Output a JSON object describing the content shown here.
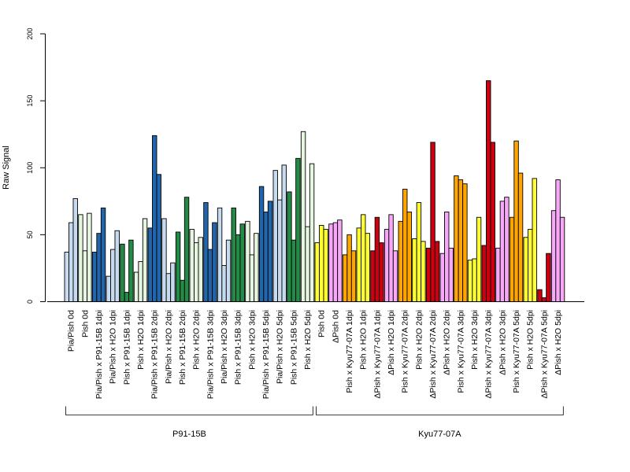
{
  "chart_data": {
    "type": "bar",
    "title": "",
    "ylabel": "Raw Signal",
    "xlabel": "",
    "ylim": [
      0,
      200
    ],
    "yticks": [
      0,
      50,
      100,
      150,
      200
    ],
    "grid": false,
    "legend": "none",
    "colors": {
      "Pia/Pish": "#c6dbef",
      "Pish": "#e5f5e0",
      "Pia/Pish x P91-15B": "#2166ac",
      "Pish x P91-15B": "#238b45",
      "Pia/Pish x H2O": "#c6dbef",
      "Pish x H2O": "#e5f5e0",
      "Kyu Pish": "#ffff33",
      "ΔPish": "#f8a8f8",
      "Pish x Kyu77-07A": "#ffa500",
      "ΔPish x Kyu77-07A": "#cc0011",
      "Kyu Pish x H2O": "#ffff33",
      "ΔPish x H2O": "#f8a8f8"
    },
    "categories": [
      "Pia/Pish 0d",
      "Pish 0d",
      "Pia/Pish x P91-15B 1dpi",
      "Pia/Pish x H2O 1dpi",
      "Pish x P91-15B 1dpi",
      "Pish x H2O 1dpi",
      "Pia/Pish x P91-15B 2dpi",
      "Pia/Pish x H2O 2dpi",
      "Pish x P91-15B 2dpi",
      "Pish x H2O 2dpi",
      "Pia/Pish x P91-15B 3dpi",
      "Pia/Pish x H2O 3dpi",
      "Pish x P91-15B 3dpi",
      "Pish x H2O 3dpi",
      "Pia/Pish x P91-15B 5dpi",
      "Pia/Pish x H2O 5dpi",
      "Pish x P91-15B 5dpi",
      "Pish x H2O 5dpi",
      "Pish 0d",
      "ΔPish 0d",
      "Pish x Kyu77-07A 1dpi",
      "Pish x H2O 1dpi",
      "ΔPish x Kyu77-07A 1dpi",
      "ΔPish x H2O 1dpi",
      "Pish x Kyu77-07A 2dpi",
      "Pish x H2O 2dpi",
      "ΔPish x Kyu77-07A 2dpi",
      "ΔPish x H2O 2dpi",
      "Pish x Kyu77-07A 3dpi",
      "Pish x H2O 3dpi",
      "ΔPish x Kyu77-07A 3dpi",
      "ΔPish x H2O 3dpi",
      "Pish x Kyu77-07A 5dpi",
      "Pish x H2O 5dpi",
      "ΔPish x Kyu77-07A 5dpi",
      "ΔPish x H2O 5dpi"
    ],
    "values": [
      [
        37,
        59,
        77
      ],
      [
        65,
        38,
        66
      ],
      [
        37,
        51,
        70
      ],
      [
        19,
        39,
        53
      ],
      [
        43,
        7,
        46
      ],
      [
        22,
        30,
        62
      ],
      [
        55,
        124,
        95
      ],
      [
        62,
        21,
        29
      ],
      [
        52,
        16,
        78
      ],
      [
        54,
        44,
        48
      ],
      [
        74,
        39,
        59
      ],
      [
        70,
        27,
        46
      ],
      [
        70,
        50,
        58
      ],
      [
        60,
        35,
        51
      ],
      [
        86,
        67,
        75
      ],
      [
        98,
        76,
        102
      ],
      [
        82,
        46,
        107
      ],
      [
        127,
        56,
        103
      ],
      [
        44,
        57,
        54
      ],
      [
        58,
        59,
        61
      ],
      [
        35,
        50,
        38
      ],
      [
        55,
        65,
        51
      ],
      [
        38,
        63,
        44
      ],
      [
        54,
        65,
        38
      ],
      [
        60,
        84,
        67
      ],
      [
        47,
        74,
        45
      ],
      [
        40,
        119,
        45
      ],
      [
        36,
        67,
        40
      ],
      [
        94,
        91,
        88
      ],
      [
        31,
        32,
        63
      ],
      [
        42,
        165,
        119
      ],
      [
        40,
        75,
        78
      ],
      [
        63,
        120,
        96
      ],
      [
        48,
        54,
        92
      ],
      [
        9,
        3,
        36
      ],
      [
        68,
        91,
        63
      ]
    ],
    "group_color_keys": [
      "Pia/Pish",
      "Pish",
      "Pia/Pish x P91-15B",
      "Pia/Pish x H2O",
      "Pish x P91-15B",
      "Pish x H2O",
      "Pia/Pish x P91-15B",
      "Pia/Pish x H2O",
      "Pish x P91-15B",
      "Pish x H2O",
      "Pia/Pish x P91-15B",
      "Pia/Pish x H2O",
      "Pish x P91-15B",
      "Pish x H2O",
      "Pia/Pish x P91-15B",
      "Pia/Pish x H2O",
      "Pish x P91-15B",
      "Pish x H2O",
      "Kyu Pish",
      "ΔPish",
      "Pish x Kyu77-07A",
      "Kyu Pish x H2O",
      "ΔPish x Kyu77-07A",
      "ΔPish x H2O",
      "Pish x Kyu77-07A",
      "Kyu Pish x H2O",
      "ΔPish x Kyu77-07A",
      "ΔPish x H2O",
      "Pish x Kyu77-07A",
      "Kyu Pish x H2O",
      "ΔPish x Kyu77-07A",
      "ΔPish x H2O",
      "Pish x Kyu77-07A",
      "Kyu Pish x H2O",
      "ΔPish x Kyu77-07A",
      "ΔPish x H2O"
    ],
    "blocks": [
      {
        "label": "P91-15B",
        "first": 0,
        "last": 17
      },
      {
        "label": "Kyu77-07A",
        "first": 18,
        "last": 35
      }
    ]
  }
}
